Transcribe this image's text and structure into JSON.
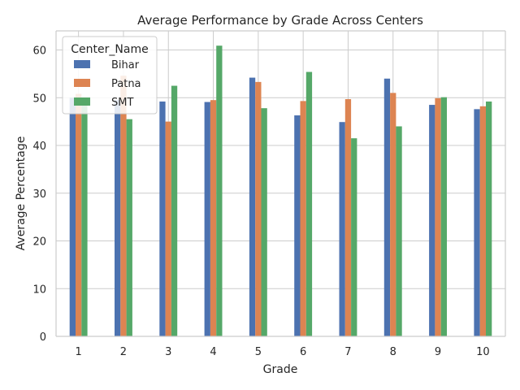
{
  "chart_data": {
    "type": "bar",
    "title": "Average Performance by Grade Across Centers",
    "xlabel": "Grade",
    "ylabel": "Average Percentage",
    "ylim": [
      0,
      64
    ],
    "yticks": [
      0,
      10,
      20,
      30,
      40,
      50,
      60
    ],
    "grid": true,
    "categories": [
      "1",
      "2",
      "3",
      "4",
      "5",
      "6",
      "7",
      "8",
      "9",
      "10"
    ],
    "legend": {
      "title": "Center_Name",
      "location": "top-left"
    },
    "series": [
      {
        "name": "Bihar",
        "color": "#4c72b0",
        "values": [
          50.0,
          49.5,
          49.2,
          49.1,
          54.2,
          46.3,
          44.9,
          54.0,
          48.5,
          47.6
        ]
      },
      {
        "name": "Patna",
        "color": "#dd8452",
        "values": [
          50.8,
          54.6,
          45.0,
          49.5,
          53.3,
          49.3,
          49.7,
          51.0,
          49.9,
          48.2
        ]
      },
      {
        "name": "SMT",
        "color": "#55a868",
        "values": [
          49.8,
          45.5,
          52.5,
          60.9,
          47.8,
          55.4,
          41.5,
          44.0,
          50.1,
          49.2
        ]
      }
    ]
  }
}
